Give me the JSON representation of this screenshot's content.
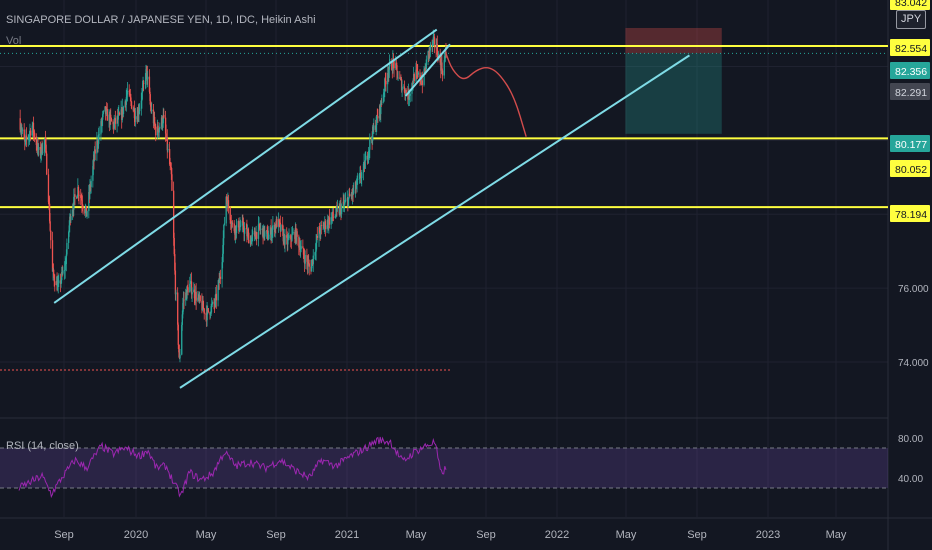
{
  "header": {
    "title": "SINGAPORE DOLLAR / JAPANESE YEN, 1D, IDC, Heikin Ashi",
    "vol_label": "Vol",
    "currency_badge": "JPY"
  },
  "rsi": {
    "label": "RSI (14, close)",
    "ticks": [
      "80.00",
      "40.00"
    ],
    "upper_band": 70,
    "lower_band": 30
  },
  "colors": {
    "background": "#131722",
    "up": "#26a69a",
    "down": "#ef5350",
    "level_line": "#ffff3f",
    "channel": "#7fdbe6",
    "forecast": "#d24c4c",
    "rsi": "#9c27b0",
    "axis_text": "#b2b5be"
  },
  "chart_data": {
    "type": "candlestick",
    "x_ticks": [
      "Sep",
      "2020",
      "May",
      "Sep",
      "2021",
      "May",
      "Sep",
      "2022",
      "May",
      "Sep",
      "2023",
      "May"
    ],
    "y_ticks": [
      "74.000",
      "76.000"
    ],
    "price_levels": [
      {
        "label": "83.042",
        "value": 83.042
      },
      {
        "label": "82.554",
        "value": 82.554
      },
      {
        "label": "82.356",
        "value": 82.356
      },
      {
        "label": "82.291",
        "value": 82.291
      },
      {
        "label": "80.177",
        "value": 80.177
      },
      {
        "label": "80.052",
        "value": 80.052
      },
      {
        "label": "78.194",
        "value": 78.194
      }
    ],
    "horizontal_levels": [
      82.554,
      80.052,
      78.194
    ],
    "price_path": [
      [
        "2019-06-15",
        80.6
      ],
      [
        "2019-06-25",
        79.9
      ],
      [
        "2019-07-08",
        80.4
      ],
      [
        "2019-07-20",
        79.6
      ],
      [
        "2019-07-30",
        80.0
      ],
      [
        "2019-08-05",
        78.5
      ],
      [
        "2019-08-12",
        76.4
      ],
      [
        "2019-08-22",
        76.0
      ],
      [
        "2019-09-03",
        76.6
      ],
      [
        "2019-09-12",
        78.0
      ],
      [
        "2019-09-25",
        78.7
      ],
      [
        "2019-10-10",
        78.0
      ],
      [
        "2019-10-25",
        79.7
      ],
      [
        "2019-11-10",
        80.8
      ],
      [
        "2019-11-25",
        80.4
      ],
      [
        "2019-12-10",
        80.7
      ],
      [
        "2019-12-20",
        81.3
      ],
      [
        "2020-01-05",
        80.6
      ],
      [
        "2020-01-15",
        81.3
      ],
      [
        "2020-01-22",
        81.9
      ],
      [
        "2020-01-29",
        80.9
      ],
      [
        "2020-02-08",
        80.2
      ],
      [
        "2020-02-20",
        80.6
      ],
      [
        "2020-03-05",
        79.0
      ],
      [
        "2020-03-12",
        76.0
      ],
      [
        "2020-03-19",
        74.0
      ],
      [
        "2020-03-25",
        75.6
      ],
      [
        "2020-04-05",
        76.1
      ],
      [
        "2020-04-20",
        75.7
      ],
      [
        "2020-05-05",
        75.3
      ],
      [
        "2020-05-20",
        75.6
      ],
      [
        "2020-05-30",
        76.4
      ],
      [
        "2020-06-08",
        78.5
      ],
      [
        "2020-06-20",
        77.6
      ],
      [
        "2020-07-05",
        77.7
      ],
      [
        "2020-07-20",
        77.3
      ],
      [
        "2020-08-05",
        77.6
      ],
      [
        "2020-08-20",
        77.4
      ],
      [
        "2020-09-05",
        77.8
      ],
      [
        "2020-09-20",
        77.2
      ],
      [
        "2020-10-05",
        77.5
      ],
      [
        "2020-10-20",
        76.9
      ],
      [
        "2020-11-01",
        76.5
      ],
      [
        "2020-11-15",
        77.5
      ],
      [
        "2020-12-01",
        77.8
      ],
      [
        "2020-12-15",
        78.0
      ],
      [
        "2021-01-01",
        78.3
      ],
      [
        "2021-01-15",
        78.6
      ],
      [
        "2021-02-01",
        79.2
      ],
      [
        "2021-02-15",
        80.1
      ],
      [
        "2021-03-01",
        80.8
      ],
      [
        "2021-03-15",
        81.9
      ],
      [
        "2021-03-25",
        82.1
      ],
      [
        "2021-04-05",
        81.6
      ],
      [
        "2021-04-20",
        81.2
      ],
      [
        "2021-05-01",
        81.8
      ],
      [
        "2021-05-15",
        81.6
      ],
      [
        "2021-05-25",
        82.4
      ],
      [
        "2021-06-05",
        82.7
      ],
      [
        "2021-06-12",
        82.2
      ],
      [
        "2021-06-18",
        81.9
      ],
      [
        "2021-06-24",
        82.35
      ]
    ],
    "rsi_path": [
      [
        "2019-06-15",
        30
      ],
      [
        "2019-07-05",
        36
      ],
      [
        "2019-07-25",
        42
      ],
      [
        "2019-08-10",
        24
      ],
      [
        "2019-08-28",
        40
      ],
      [
        "2019-09-20",
        58
      ],
      [
        "2019-10-10",
        50
      ],
      [
        "2019-11-05",
        72
      ],
      [
        "2019-11-25",
        64
      ],
      [
        "2019-12-15",
        70
      ],
      [
        "2020-01-10",
        62
      ],
      [
        "2020-01-24",
        68
      ],
      [
        "2020-02-08",
        50
      ],
      [
        "2020-02-25",
        52
      ],
      [
        "2020-03-10",
        34
      ],
      [
        "2020-03-22",
        22
      ],
      [
        "2020-04-05",
        46
      ],
      [
        "2020-04-25",
        38
      ],
      [
        "2020-05-15",
        44
      ],
      [
        "2020-06-05",
        66
      ],
      [
        "2020-06-25",
        52
      ],
      [
        "2020-07-20",
        56
      ],
      [
        "2020-08-15",
        50
      ],
      [
        "2020-09-10",
        58
      ],
      [
        "2020-10-05",
        48
      ],
      [
        "2020-10-30",
        40
      ],
      [
        "2020-11-20",
        58
      ],
      [
        "2020-12-15",
        52
      ],
      [
        "2021-01-10",
        62
      ],
      [
        "2021-02-05",
        70
      ],
      [
        "2021-02-25",
        78
      ],
      [
        "2021-03-20",
        76
      ],
      [
        "2021-04-10",
        56
      ],
      [
        "2021-04-30",
        66
      ],
      [
        "2021-05-20",
        72
      ],
      [
        "2021-06-05",
        76
      ],
      [
        "2021-06-15",
        44
      ],
      [
        "2021-06-24",
        50
      ]
    ],
    "projection_path": [
      [
        "2021-06-24",
        82.35
      ],
      [
        "2021-07-05",
        81.9
      ],
      [
        "2021-07-25",
        81.6
      ],
      [
        "2021-08-15",
        81.9
      ],
      [
        "2021-09-05",
        82.0
      ],
      [
        "2021-09-25",
        81.8
      ],
      [
        "2021-10-20",
        81.2
      ],
      [
        "2021-11-10",
        80.1
      ]
    ],
    "channel_lines": [
      {
        "from": [
          "2019-08-15",
          75.6
        ],
        "to": [
          "2021-06-08",
          83.0
        ]
      },
      {
        "from": [
          "2020-03-20",
          73.3
        ],
        "to": [
          "2022-08-20",
          82.3
        ]
      },
      {
        "from": [
          "2021-04-15",
          81.2
        ],
        "to": [
          "2021-07-01",
          82.6
        ]
      }
    ],
    "position_box": {
      "start": "2022-05-01",
      "end": "2022-10-15",
      "entry": 82.356,
      "stop": 83.042,
      "target": 80.177
    }
  }
}
